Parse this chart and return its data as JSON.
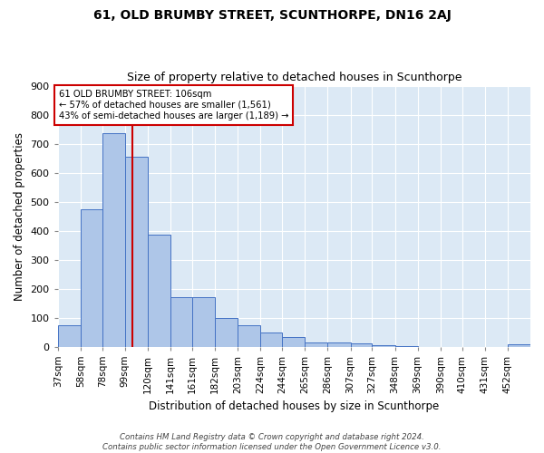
{
  "title": "61, OLD BRUMBY STREET, SCUNTHORPE, DN16 2AJ",
  "subtitle": "Size of property relative to detached houses in Scunthorpe",
  "xlabel": "Distribution of detached houses by size in Scunthorpe",
  "ylabel": "Number of detached properties",
  "footnote": "Contains HM Land Registry data © Crown copyright and database right 2024.\nContains public sector information licensed under the Open Government Licence v3.0.",
  "bar_labels": [
    "37sqm",
    "58sqm",
    "78sqm",
    "99sqm",
    "120sqm",
    "141sqm",
    "161sqm",
    "182sqm",
    "203sqm",
    "224sqm",
    "244sqm",
    "265sqm",
    "286sqm",
    "307sqm",
    "327sqm",
    "348sqm",
    "369sqm",
    "390sqm",
    "410sqm",
    "431sqm",
    "452sqm"
  ],
  "bar_values": [
    75,
    475,
    735,
    655,
    385,
    170,
    170,
    97,
    75,
    47,
    32,
    15,
    13,
    10,
    6,
    3,
    0,
    0,
    0,
    0,
    8
  ],
  "bar_color": "#aec6e8",
  "bar_edge_color": "#4472c4",
  "annotation_line_color": "#cc0000",
  "annotation_text_line1": "61 OLD BRUMBY STREET: 106sqm",
  "annotation_text_line2": "← 57% of detached houses are smaller (1,561)",
  "annotation_text_line3": "43% of semi-detached houses are larger (1,189) →",
  "annotation_box_color": "#ffffff",
  "annotation_box_edge": "#cc0000",
  "ylim": [
    0,
    900
  ],
  "yticks": [
    0,
    100,
    200,
    300,
    400,
    500,
    600,
    700,
    800,
    900
  ],
  "grid_color": "#ffffff",
  "bg_color": "#dce9f5",
  "fig_bg_color": "#ffffff",
  "bin_edges": [
    37,
    58,
    78,
    99,
    120,
    141,
    161,
    182,
    203,
    224,
    244,
    265,
    286,
    307,
    327,
    348,
    369,
    390,
    410,
    431,
    452,
    473
  ]
}
